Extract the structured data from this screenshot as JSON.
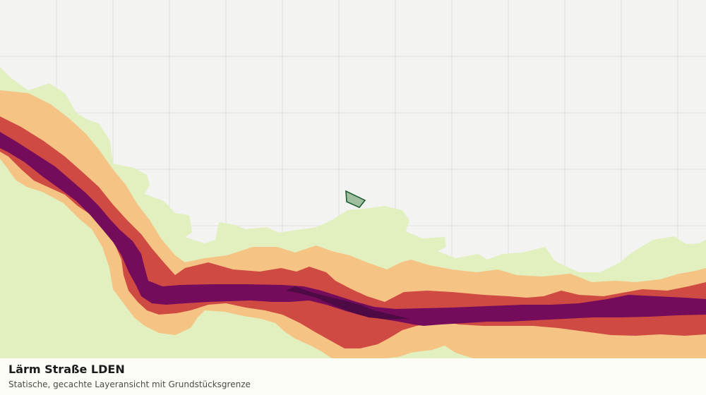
{
  "map": {
    "title": "Lärm Straße LDEN",
    "subtitle": "Statische, gecachte Layeransicht mit Grundstücksgrenze",
    "colors": {
      "background": "#f3f4f1",
      "grid": "#e0e2dd",
      "band_outer": "#e2efbf",
      "band_2": "#f5c384",
      "band_3": "#cf4a42",
      "band_4": "#740c5b",
      "band_core": "#4e0a45",
      "parcel_fill": "#9fbf9e",
      "parcel_stroke": "#1f5e32"
    },
    "layers": [
      {
        "name": "noise-zone-outer",
        "color_key": "band_outer"
      },
      {
        "name": "noise-zone-2",
        "color_key": "band_2"
      },
      {
        "name": "noise-zone-3",
        "color_key": "band_3"
      },
      {
        "name": "noise-zone-4",
        "color_key": "band_4"
      },
      {
        "name": "noise-zone-core",
        "color_key": "band_core"
      }
    ]
  }
}
